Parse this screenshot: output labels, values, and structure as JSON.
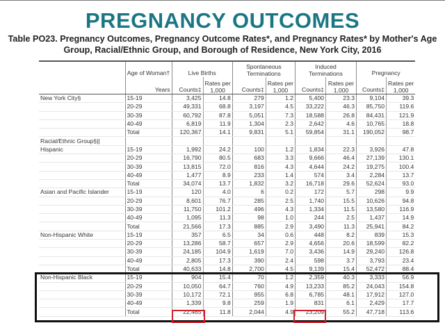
{
  "title": "PREGNANCY OUTCOMES",
  "subtitle_line1": "Table PO23. Pregnancy Outcomes, Pregnancy Outcome Rates*, and Pregnancy Rates* by Mother's Age",
  "subtitle_line2": "Group, Racial/Ethnic Group, and Borough of Residence, New York City, 2016",
  "headers": {
    "age": "Age of Woman†",
    "years": "Years",
    "live_births": "Live Births",
    "spontaneous_1": "Spontaneous",
    "spontaneous_2": "Terminations",
    "induced_1": "Induced",
    "induced_2": "Terminations",
    "pregnancy": "Pregnancy",
    "counts": "Counts‡",
    "rates_1": "Rates per",
    "rates_2": "1,000"
  },
  "section_label": "Racial/Ethnic Group§||",
  "groups": [
    {
      "name": "New York City§",
      "rows": [
        [
          "15-19",
          "3,425",
          "14.8",
          "279",
          "1.2",
          "5,400",
          "23.3",
          "9,104",
          "39.3"
        ],
        [
          "20-29",
          "49,331",
          "68.8",
          "3,197",
          "4.5",
          "33,222",
          "46.3",
          "85,750",
          "119.6"
        ],
        [
          "30-39",
          "60,792",
          "87.8",
          "5,051",
          "7.3",
          "18,588",
          "26.8",
          "84,431",
          "121.9"
        ],
        [
          "40-49",
          "6,819",
          "11.9",
          "1,304",
          "2.3",
          "2,642",
          "4.6",
          "10,765",
          "18.8"
        ],
        [
          "Total",
          "120,367",
          "14.1",
          "9,831",
          "5.1",
          "59,854",
          "31.1",
          "190,052",
          "98.7"
        ]
      ]
    },
    {
      "name": "Hispanic",
      "rows": [
        [
          "15-19",
          "1,992",
          "24.2",
          "100",
          "1.2",
          "1,834",
          "22.3",
          "3,926",
          "47.8"
        ],
        [
          "20-29",
          "16,790",
          "80.5",
          "683",
          "3.3",
          "9,666",
          "46.4",
          "27,139",
          "130.1"
        ],
        [
          "30-39",
          "13,815",
          "72.0",
          "816",
          "4.3",
          "4,644",
          "24.2",
          "19,275",
          "100.4"
        ],
        [
          "40-49",
          "1,477",
          "8.9",
          "233",
          "1.4",
          "574",
          "3.4",
          "2,284",
          "13.7"
        ],
        [
          "Total",
          "34,074",
          "13.7",
          "1,832",
          "3.2",
          "16,718",
          "29.6",
          "52,624",
          "93.0"
        ]
      ]
    },
    {
      "name": "Asian and Pacific Islander",
      "rows": [
        [
          "15-19",
          "120",
          "4.0",
          "6",
          "0.2",
          "172",
          "5.7",
          "298",
          "9.9"
        ],
        [
          "20-29",
          "8,601",
          "76.7",
          "285",
          "2.5",
          "1,740",
          "15.5",
          "10,626",
          "94.8"
        ],
        [
          "30-39",
          "11,750",
          "101.2",
          "496",
          "4.3",
          "1,334",
          "11.5",
          "13,580",
          "116.9"
        ],
        [
          "40-49",
          "1,095",
          "11.3",
          "98",
          "1.0",
          "244",
          "2.5",
          "1,437",
          "14.9"
        ],
        [
          "Total",
          "21,566",
          "17.3",
          "885",
          "2.9",
          "3,490",
          "11.3",
          "25,941",
          "84.2"
        ]
      ]
    },
    {
      "name": "Non-Hispanic White",
      "rows": [
        [
          "15-19",
          "357",
          "6.5",
          "34",
          "0.6",
          "448",
          "8.2",
          "839",
          "15.3"
        ],
        [
          "20-29",
          "13,286",
          "58.7",
          "657",
          "2.9",
          "4,656",
          "20.6",
          "18,599",
          "82.2"
        ],
        [
          "30-39",
          "24,185",
          "104.9",
          "1,619",
          "7.0",
          "3,436",
          "14.9",
          "29,240",
          "126.8"
        ],
        [
          "40-49",
          "2,805",
          "17.3",
          "390",
          "2.4",
          "598",
          "3.7",
          "3,793",
          "23.4"
        ],
        [
          "Total",
          "40,633",
          "14.8",
          "2,700",
          "4.5",
          "9,139",
          "15.4",
          "52,472",
          "88.4"
        ]
      ]
    },
    {
      "name": "Non-Hispanic Black",
      "rows": [
        [
          "15-19",
          "904",
          "15.4",
          "70",
          "1.2",
          "2,359",
          "40.3",
          "3,333",
          "56.9"
        ],
        [
          "20-29",
          "10,050",
          "64.7",
          "760",
          "4.9",
          "13,233",
          "85.2",
          "24,043",
          "154.8"
        ],
        [
          "30-39",
          "10,172",
          "72.1",
          "955",
          "6.8",
          "6,785",
          "48.1",
          "17,912",
          "127.0"
        ],
        [
          "40-49",
          "1,339",
          "9.8",
          "259",
          "1.9",
          "831",
          "6.1",
          "2,429",
          "17.7"
        ],
        [
          "Total",
          "22,465",
          "11.8",
          "2,044",
          "4.9",
          "23,209",
          "55.2",
          "47,718",
          "113.6"
        ]
      ]
    }
  ],
  "colors": {
    "title": "#1b7684",
    "highlight_box": "#111111",
    "highlight_cell": "#d0202a"
  }
}
